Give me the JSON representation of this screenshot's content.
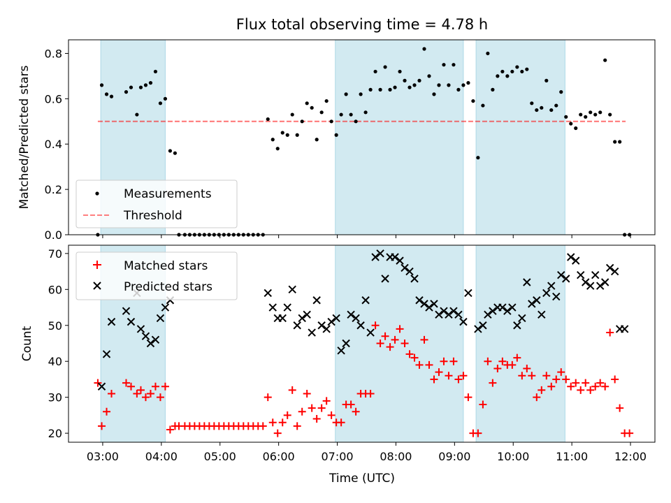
{
  "figure": {
    "title": "Flux total observing time = 4.78 h"
  },
  "colors": {
    "shade": "#add8e6",
    "threshold": "#ff0000",
    "matched": "#ff0000",
    "predicted": "#000000",
    "measurement": "#000000"
  },
  "chart_data": [
    {
      "type": "scatter",
      "panel": "top",
      "ylabel": "Matched/Predicted stars",
      "xlabel": "",
      "ylim": [
        0,
        0.86
      ],
      "xlim": [
        "02:25",
        "12:25"
      ],
      "yticks": [
        "0.0",
        "0.2",
        "0.4",
        "0.6",
        "0.8"
      ],
      "grid": false,
      "legend": {
        "placement": "lower-left",
        "entries": [
          "Measurements",
          "Threshold"
        ]
      },
      "threshold": {
        "name": "Threshold",
        "y": 0.5,
        "x": [
          "02:55",
          "11:55"
        ]
      },
      "shaded_intervals": [
        [
          "02:58",
          "04:04"
        ],
        [
          "06:58",
          "09:09"
        ],
        [
          "09:22",
          "10:53"
        ]
      ],
      "series": [
        {
          "name": "Measurements",
          "x": [
            "02:55",
            "02:59",
            "03:04",
            "03:09",
            "03:24",
            "03:29",
            "03:35",
            "03:39",
            "03:44",
            "03:49",
            "03:54",
            "03:59",
            "04:04",
            "04:09",
            "04:14",
            "04:18",
            "04:24",
            "04:29",
            "04:34",
            "04:39",
            "04:44",
            "04:49",
            "04:54",
            "04:59",
            "05:04",
            "05:09",
            "05:14",
            "05:19",
            "05:24",
            "05:29",
            "05:34",
            "05:39",
            "05:44",
            "05:49",
            "05:54",
            "05:59",
            "06:04",
            "06:09",
            "06:14",
            "06:19",
            "06:24",
            "06:29",
            "06:34",
            "06:39",
            "06:44",
            "06:49",
            "06:54",
            "06:59",
            "07:04",
            "07:09",
            "07:14",
            "07:19",
            "07:24",
            "07:29",
            "07:34",
            "07:39",
            "07:44",
            "07:49",
            "07:54",
            "07:59",
            "08:04",
            "08:09",
            "08:14",
            "08:19",
            "08:24",
            "08:29",
            "08:34",
            "08:39",
            "08:44",
            "08:49",
            "08:54",
            "08:59",
            "09:04",
            "09:09",
            "09:14",
            "09:19",
            "09:24",
            "09:29",
            "09:34",
            "09:39",
            "09:44",
            "09:49",
            "09:54",
            "09:59",
            "10:04",
            "10:09",
            "10:14",
            "10:19",
            "10:24",
            "10:29",
            "10:34",
            "10:39",
            "10:44",
            "10:49",
            "10:54",
            "10:59",
            "11:04",
            "11:09",
            "11:14",
            "11:19",
            "11:24",
            "11:29",
            "11:34",
            "11:39",
            "11:44",
            "11:49",
            "11:54",
            "11:59"
          ],
          "y": [
            0.0,
            0.66,
            0.62,
            0.61,
            0.63,
            0.65,
            0.53,
            0.65,
            0.66,
            0.67,
            0.72,
            0.58,
            0.6,
            0.37,
            0.36,
            0.0,
            0.0,
            0.0,
            0.0,
            0.0,
            0.0,
            0.0,
            0.0,
            0.0,
            0.0,
            0.0,
            0.0,
            0.0,
            0.0,
            0.0,
            0.0,
            0.0,
            0.0,
            0.51,
            0.42,
            0.38,
            0.45,
            0.44,
            0.53,
            0.44,
            0.5,
            0.58,
            0.56,
            0.42,
            0.54,
            0.59,
            0.5,
            0.44,
            0.53,
            0.62,
            0.53,
            0.5,
            0.62,
            0.54,
            0.64,
            0.72,
            0.64,
            0.74,
            0.64,
            0.65,
            0.72,
            0.68,
            0.65,
            0.66,
            0.68,
            0.82,
            0.7,
            0.62,
            0.66,
            0.75,
            0.66,
            0.75,
            0.64,
            0.66,
            0.67,
            0.59,
            0.34,
            0.57,
            0.8,
            0.64,
            0.7,
            0.72,
            0.7,
            0.72,
            0.74,
            0.72,
            0.73,
            0.58,
            0.55,
            0.56,
            0.68,
            0.55,
            0.57,
            0.63,
            0.52,
            0.49,
            0.47,
            0.53,
            0.52,
            0.54,
            0.53,
            0.54,
            0.77,
            0.53,
            0.41,
            0.41,
            0.0,
            0.0
          ]
        }
      ]
    },
    {
      "type": "scatter",
      "panel": "bottom",
      "ylabel": "Count",
      "xlabel": "Time (UTC)",
      "ylim": [
        17.5,
        72.3
      ],
      "xlim": [
        "02:25",
        "12:25"
      ],
      "yticks": [
        "20",
        "30",
        "40",
        "50",
        "60",
        "70"
      ],
      "xticks": [
        "03:00",
        "04:00",
        "05:00",
        "06:00",
        "07:00",
        "08:00",
        "09:00",
        "10:00",
        "11:00",
        "12:00"
      ],
      "grid": false,
      "legend": {
        "placement": "upper-left",
        "entries": [
          "Matched stars",
          "Predicted stars"
        ]
      },
      "shaded_intervals": [
        [
          "02:58",
          "04:04"
        ],
        [
          "06:58",
          "09:09"
        ],
        [
          "09:22",
          "10:53"
        ]
      ],
      "series": [
        {
          "name": "Matched stars",
          "x": [
            "02:55",
            "02:59",
            "03:04",
            "03:09",
            "03:24",
            "03:29",
            "03:35",
            "03:39",
            "03:44",
            "03:49",
            "03:54",
            "03:59",
            "04:04",
            "04:09",
            "04:14",
            "04:18",
            "04:24",
            "04:29",
            "04:34",
            "04:39",
            "04:44",
            "04:49",
            "04:54",
            "04:59",
            "05:04",
            "05:09",
            "05:14",
            "05:19",
            "05:24",
            "05:29",
            "05:34",
            "05:39",
            "05:44",
            "05:49",
            "05:54",
            "05:59",
            "06:04",
            "06:09",
            "06:14",
            "06:19",
            "06:24",
            "06:29",
            "06:34",
            "06:39",
            "06:44",
            "06:49",
            "06:54",
            "06:59",
            "07:04",
            "07:09",
            "07:14",
            "07:19",
            "07:24",
            "07:29",
            "07:34",
            "07:39",
            "07:44",
            "07:49",
            "07:54",
            "07:59",
            "08:04",
            "08:09",
            "08:14",
            "08:19",
            "08:24",
            "08:29",
            "08:34",
            "08:39",
            "08:44",
            "08:49",
            "08:54",
            "08:59",
            "09:04",
            "09:09",
            "09:14",
            "09:19",
            "09:24",
            "09:29",
            "09:34",
            "09:39",
            "09:44",
            "09:49",
            "09:54",
            "09:59",
            "10:04",
            "10:09",
            "10:14",
            "10:19",
            "10:24",
            "10:29",
            "10:34",
            "10:39",
            "10:44",
            "10:49",
            "10:54",
            "10:59",
            "11:04",
            "11:09",
            "11:14",
            "11:19",
            "11:24",
            "11:29",
            "11:34",
            "11:39",
            "11:44",
            "11:49",
            "11:54",
            "11:59"
          ],
          "y": [
            34,
            22,
            26,
            31,
            34,
            33,
            31,
            32,
            30,
            31,
            33,
            30,
            33,
            21,
            22,
            22,
            22,
            22,
            22,
            22,
            22,
            22,
            22,
            22,
            22,
            22,
            22,
            22,
            22,
            22,
            22,
            22,
            22,
            30,
            23,
            20,
            23,
            25,
            32,
            22,
            26,
            31,
            27,
            24,
            27,
            29,
            25,
            23,
            23,
            28,
            28,
            26,
            31,
            31,
            31,
            50,
            45,
            47,
            44,
            46,
            49,
            45,
            42,
            41,
            39,
            46,
            39,
            35,
            37,
            40,
            36,
            40,
            35,
            36,
            30,
            20,
            20,
            28,
            40,
            34,
            38,
            40,
            39,
            39,
            41,
            36,
            38,
            36,
            30,
            32,
            36,
            33,
            35,
            37,
            35,
            33,
            34,
            32,
            34,
            32,
            33,
            34,
            33,
            48,
            35,
            27,
            20,
            20
          ]
        },
        {
          "name": "Predicted stars",
          "x": [
            "02:59",
            "03:04",
            "03:09",
            "03:24",
            "03:29",
            "03:35",
            "03:39",
            "03:44",
            "03:49",
            "03:54",
            "03:59",
            "04:04",
            "04:09",
            "05:49",
            "05:54",
            "05:59",
            "06:04",
            "06:09",
            "06:14",
            "06:19",
            "06:24",
            "06:29",
            "06:34",
            "06:39",
            "06:44",
            "06:49",
            "06:54",
            "06:59",
            "07:04",
            "07:09",
            "07:14",
            "07:19",
            "07:24",
            "07:29",
            "07:34",
            "07:39",
            "07:44",
            "07:49",
            "07:54",
            "07:59",
            "08:04",
            "08:09",
            "08:14",
            "08:19",
            "08:24",
            "08:29",
            "08:34",
            "08:39",
            "08:44",
            "08:49",
            "08:54",
            "08:59",
            "09:04",
            "09:09",
            "09:14",
            "09:24",
            "09:29",
            "09:34",
            "09:39",
            "09:44",
            "09:49",
            "09:54",
            "09:59",
            "10:04",
            "10:09",
            "10:14",
            "10:19",
            "10:24",
            "10:29",
            "10:34",
            "10:39",
            "10:44",
            "10:49",
            "10:54",
            "10:59",
            "11:04",
            "11:09",
            "11:14",
            "11:19",
            "11:24",
            "11:29",
            "11:34",
            "11:39",
            "11:44",
            "11:49",
            "11:54"
          ],
          "y": [
            33,
            42,
            51,
            54,
            51,
            59,
            49,
            47,
            45,
            46,
            52,
            55,
            57,
            59,
            55,
            52,
            52,
            55,
            60,
            50,
            52,
            53,
            48,
            57,
            50,
            49,
            51,
            52,
            43,
            45,
            53,
            52,
            50,
            57,
            48,
            69,
            70,
            63,
            69,
            69,
            68,
            66,
            65,
            63,
            57,
            56,
            55,
            56,
            53,
            54,
            53,
            54,
            53,
            51,
            59,
            49,
            50,
            53,
            54,
            55,
            55,
            54,
            55,
            50,
            52,
            62,
            56,
            57,
            53,
            59,
            61,
            58,
            64,
            63,
            69,
            68,
            64,
            62,
            61,
            64,
            61,
            62,
            66,
            65,
            49,
            49
          ]
        }
      ]
    }
  ]
}
